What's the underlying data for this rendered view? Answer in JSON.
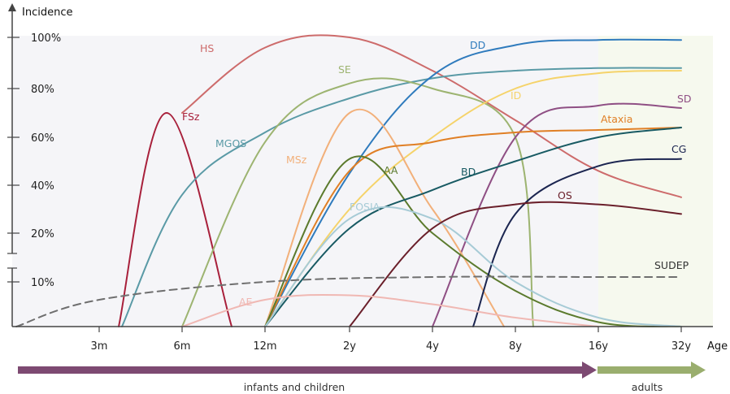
{
  "chart_data": {
    "type": "line",
    "title": "",
    "ylabel": "Incidence",
    "xlabel": "Age",
    "x_ticks": [
      "3m",
      "6m",
      "12m",
      "2y",
      "4y",
      "8y",
      "16y",
      "32y"
    ],
    "y_ticks": [
      "10%",
      "20%",
      "40%",
      "60%",
      "80%",
      "100%"
    ],
    "y_axis_break_between": [
      "10%",
      "20%"
    ],
    "grid": false,
    "age_groups": [
      {
        "name": "infants and children",
        "from": "0",
        "to": "16y",
        "color": "#7d4a72"
      },
      {
        "name": "adults",
        "from": "16y",
        "to": "Age",
        "color": "#9aae6e"
      }
    ],
    "series": [
      {
        "name": "HS",
        "color": "#cd6b6b",
        "points": [
          [
            "6m",
            70
          ],
          [
            "12m",
            96
          ],
          [
            "2y",
            100
          ],
          [
            "4y",
            87
          ],
          [
            "8y",
            67
          ],
          [
            "16y",
            46
          ],
          [
            "32y",
            35
          ]
        ]
      },
      {
        "name": "FSz",
        "color": "#a8203b",
        "points": [
          [
            "3m",
            0
          ],
          [
            "6m",
            70
          ],
          [
            "12m",
            0
          ]
        ]
      },
      {
        "name": "MGOS",
        "color": "#5a9aa6",
        "points": [
          [
            "3m",
            0
          ],
          [
            "6m",
            36
          ],
          [
            "12m",
            62
          ],
          [
            "2y",
            76
          ],
          [
            "4y",
            84
          ],
          [
            "8y",
            87
          ],
          [
            "16y",
            88
          ],
          [
            "32y",
            88
          ]
        ]
      },
      {
        "name": "SE",
        "color": "#9db471",
        "points": [
          [
            "6m",
            0
          ],
          [
            "12m",
            58
          ],
          [
            "2y",
            82
          ],
          [
            "4y",
            80
          ],
          [
            "8y",
            60
          ],
          [
            "16y",
            0
          ]
        ]
      },
      {
        "name": "DD",
        "color": "#2f7bbd",
        "points": [
          [
            "12m",
            0
          ],
          [
            "2y",
            45
          ],
          [
            "4y",
            85
          ],
          [
            "8y",
            97
          ],
          [
            "16y",
            99
          ],
          [
            "32y",
            99
          ]
        ]
      },
      {
        "name": "ID",
        "color": "#f5d36a",
        "points": [
          [
            "12m",
            0
          ],
          [
            "2y",
            30
          ],
          [
            "4y",
            60
          ],
          [
            "8y",
            80
          ],
          [
            "16y",
            86
          ],
          [
            "32y",
            87
          ]
        ]
      },
      {
        "name": "SD",
        "color": "#8f4f84",
        "points": [
          [
            "4y",
            0
          ],
          [
            "8y",
            60
          ],
          [
            "16y",
            73
          ],
          [
            "32y",
            72
          ]
        ]
      },
      {
        "name": "MSz",
        "color": "#f2b07a",
        "points": [
          [
            "12m",
            0
          ],
          [
            "2y",
            70
          ],
          [
            "4y",
            30
          ],
          [
            "8y",
            0
          ]
        ]
      },
      {
        "name": "Ataxia",
        "color": "#e07f25",
        "points": [
          [
            "12m",
            0
          ],
          [
            "2y",
            46
          ],
          [
            "4y",
            58
          ],
          [
            "8y",
            62
          ],
          [
            "16y",
            63
          ],
          [
            "32y",
            64
          ]
        ]
      },
      {
        "name": "AA",
        "color": "#5b7a2d",
        "points": [
          [
            "12m",
            0
          ],
          [
            "2y",
            51
          ],
          [
            "4y",
            20
          ],
          [
            "8y",
            8
          ],
          [
            "16y",
            1
          ],
          [
            "32y",
            0
          ]
        ]
      },
      {
        "name": "BD",
        "color": "#185a63",
        "points": [
          [
            "12m",
            0
          ],
          [
            "2y",
            22
          ],
          [
            "4y",
            38
          ],
          [
            "8y",
            50
          ],
          [
            "16y",
            60
          ],
          [
            "32y",
            64
          ]
        ]
      },
      {
        "name": "CG",
        "color": "#1b2550",
        "points": [
          [
            "4y",
            0
          ],
          [
            "8y",
            28
          ],
          [
            "16y",
            48
          ],
          [
            "32y",
            51
          ]
        ]
      },
      {
        "name": "FOSIA",
        "color": "#a7cbd6",
        "points": [
          [
            "12m",
            0
          ],
          [
            "2y",
            26
          ],
          [
            "4y",
            26
          ],
          [
            "8y",
            10
          ],
          [
            "16y",
            2
          ],
          [
            "32y",
            0
          ]
        ]
      },
      {
        "name": "OS",
        "color": "#6a1f2a",
        "points": [
          [
            "2y",
            0
          ],
          [
            "4y",
            22
          ],
          [
            "8y",
            32
          ],
          [
            "16y",
            32
          ],
          [
            "32y",
            28
          ]
        ]
      },
      {
        "name": "AE",
        "color": "#f0b8b3",
        "points": [
          [
            "6m",
            0
          ],
          [
            "12m",
            6
          ],
          [
            "2y",
            7
          ],
          [
            "4y",
            5
          ],
          [
            "8y",
            2
          ],
          [
            "16y",
            0
          ]
        ]
      },
      {
        "name": "SUDEP",
        "color": "#6f6f6f",
        "dashed": true,
        "points": [
          [
            "0",
            0
          ],
          [
            "3m",
            6
          ],
          [
            "12m",
            10
          ],
          [
            "4y",
            11
          ],
          [
            "16y",
            11
          ],
          [
            "32y",
            11
          ]
        ]
      }
    ]
  }
}
